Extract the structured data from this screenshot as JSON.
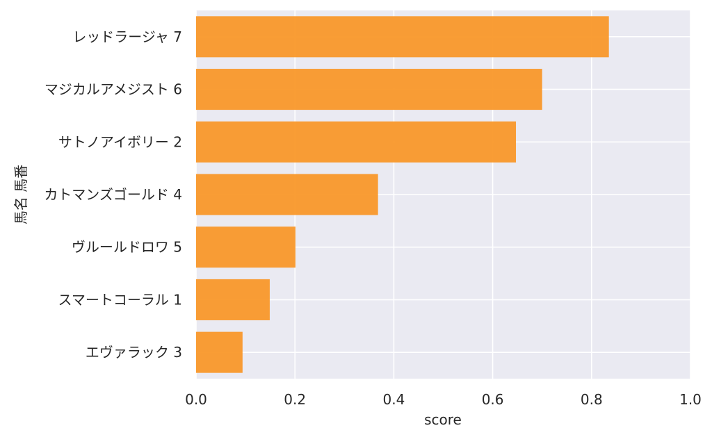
{
  "chart_data": {
    "type": "bar",
    "orientation": "horizontal",
    "categories": [
      "レッドラージャ 7",
      "マジカルアメジスト 6",
      "サトノアイボリー 2",
      "カトマンズゴールド 4",
      "ヴルールドロワ 5",
      "スマートコーラル 1",
      "エヴァラック 3"
    ],
    "values": [
      0.835,
      0.7,
      0.647,
      0.368,
      0.201,
      0.149,
      0.094
    ],
    "xlabel": "score",
    "ylabel": "馬名 馬番",
    "xlim": [
      0,
      1.0
    ],
    "xticks": [
      "0.0",
      "0.2",
      "0.4",
      "0.6",
      "0.8",
      "1.0"
    ],
    "grid": true,
    "bar_color": "#f9982a",
    "background_color": "#eaeaf2"
  }
}
